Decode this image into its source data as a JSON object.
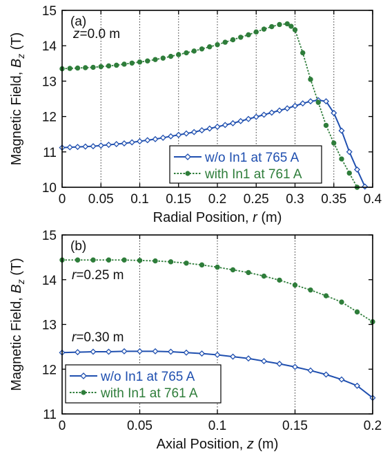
{
  "colors": {
    "blue": "#1f4faf",
    "green": "#2e7d3a",
    "grid": "#333333",
    "axis": "#000000"
  },
  "chart_data": [
    {
      "type": "line",
      "panel_label": "(a)",
      "annotation": {
        "prefix": "z",
        "text": "=0.0 m"
      },
      "xlabel": {
        "text": "Radial Position, ",
        "var": "r",
        "unit": " (m)"
      },
      "ylabel": {
        "text": "Magnetic Field, ",
        "var": "B",
        "sub": "z",
        "unit": " (T)"
      },
      "xlim": [
        0,
        0.4
      ],
      "ylim": [
        10,
        15
      ],
      "xticks": [
        0,
        0.05,
        0.1,
        0.15,
        0.2,
        0.25,
        0.3,
        0.35,
        0.4
      ],
      "xtick_labels": [
        "0",
        "0.05",
        "0.1",
        "0.15",
        "0.2",
        "0.25",
        "0.3",
        "0.35",
        "0.4"
      ],
      "yticks": [
        10,
        11,
        12,
        13,
        14,
        15
      ],
      "ytick_labels": [
        "10",
        "11",
        "12",
        "13",
        "14",
        "15"
      ],
      "grid": "vertical dotted",
      "legend_position": "bottom-right",
      "series": [
        {
          "name": "w/o In1 at 765 A",
          "color": "blue",
          "style": "solid",
          "marker": "open-diamond",
          "x": [
            0,
            0.01,
            0.02,
            0.03,
            0.04,
            0.05,
            0.06,
            0.07,
            0.08,
            0.09,
            0.1,
            0.11,
            0.12,
            0.13,
            0.14,
            0.15,
            0.16,
            0.17,
            0.18,
            0.19,
            0.2,
            0.21,
            0.22,
            0.23,
            0.24,
            0.25,
            0.26,
            0.27,
            0.28,
            0.29,
            0.3,
            0.31,
            0.32,
            0.33,
            0.34,
            0.35,
            0.36,
            0.37,
            0.38,
            0.39
          ],
          "y": [
            11.12,
            11.13,
            11.14,
            11.15,
            11.16,
            11.18,
            11.2,
            11.22,
            11.24,
            11.27,
            11.3,
            11.33,
            11.36,
            11.4,
            11.44,
            11.48,
            11.52,
            11.56,
            11.61,
            11.66,
            11.71,
            11.76,
            11.81,
            11.87,
            11.93,
            11.99,
            12.05,
            12.11,
            12.17,
            12.23,
            12.3,
            12.37,
            12.43,
            12.46,
            12.43,
            12.1,
            11.6,
            11.0,
            10.5,
            10.02
          ]
        },
        {
          "name": "with In1 at 761 A",
          "color": "green",
          "style": "dotted",
          "marker": "filled-circle",
          "x": [
            0,
            0.01,
            0.02,
            0.03,
            0.04,
            0.05,
            0.06,
            0.07,
            0.08,
            0.09,
            0.1,
            0.11,
            0.12,
            0.13,
            0.14,
            0.15,
            0.16,
            0.17,
            0.18,
            0.19,
            0.2,
            0.21,
            0.22,
            0.23,
            0.24,
            0.25,
            0.26,
            0.27,
            0.28,
            0.29,
            0.295,
            0.3,
            0.31,
            0.32,
            0.33,
            0.34,
            0.35,
            0.36,
            0.37,
            0.38
          ],
          "y": [
            13.35,
            13.36,
            13.37,
            13.38,
            13.39,
            13.41,
            13.43,
            13.45,
            13.48,
            13.51,
            13.54,
            13.57,
            13.61,
            13.65,
            13.7,
            13.75,
            13.8,
            13.85,
            13.91,
            13.97,
            14.03,
            14.1,
            14.17,
            14.24,
            14.31,
            14.39,
            14.47,
            14.54,
            14.6,
            14.62,
            14.55,
            14.45,
            13.8,
            13.05,
            12.4,
            11.75,
            11.25,
            10.8,
            10.4,
            10.0
          ]
        }
      ]
    },
    {
      "type": "line",
      "panel_label": "(b)",
      "annotations": [
        {
          "prefix": "r",
          "text": "=0.25 m",
          "near": "green"
        },
        {
          "prefix": "r",
          "text": "=0.30 m",
          "near": "blue"
        }
      ],
      "xlabel": {
        "text": "Axial Position, ",
        "var": "z",
        "unit": " (m)"
      },
      "ylabel": {
        "text": "Magnetic Field, ",
        "var": "B",
        "sub": "z",
        "unit": " (T)"
      },
      "xlim": [
        0,
        0.2
      ],
      "ylim": [
        11,
        15
      ],
      "xticks": [
        0,
        0.05,
        0.1,
        0.15,
        0.2
      ],
      "xtick_labels": [
        "0",
        "0.05",
        "0.1",
        "0.15",
        "0.2"
      ],
      "yticks": [
        11,
        12,
        13,
        14,
        15
      ],
      "ytick_labels": [
        "11",
        "12",
        "13",
        "14",
        "15"
      ],
      "grid": "vertical dotted",
      "legend_position": "bottom-left",
      "series": [
        {
          "name": "w/o In1 at 765 A",
          "color": "blue",
          "style": "solid",
          "marker": "open-diamond",
          "x": [
            0,
            0.01,
            0.02,
            0.03,
            0.04,
            0.05,
            0.06,
            0.07,
            0.08,
            0.09,
            0.1,
            0.11,
            0.12,
            0.13,
            0.14,
            0.15,
            0.16,
            0.17,
            0.18,
            0.19,
            0.2
          ],
          "y": [
            12.37,
            12.38,
            12.39,
            12.39,
            12.4,
            12.4,
            12.4,
            12.39,
            12.37,
            12.35,
            12.32,
            12.28,
            12.24,
            12.18,
            12.12,
            12.05,
            11.97,
            11.88,
            11.77,
            11.63,
            11.36
          ]
        },
        {
          "name": "with In1 at 761 A",
          "color": "green",
          "style": "dotted",
          "marker": "filled-circle",
          "x": [
            0,
            0.01,
            0.02,
            0.03,
            0.04,
            0.05,
            0.06,
            0.07,
            0.08,
            0.09,
            0.1,
            0.11,
            0.12,
            0.13,
            0.14,
            0.15,
            0.16,
            0.17,
            0.18,
            0.19,
            0.2
          ],
          "y": [
            14.44,
            14.44,
            14.44,
            14.44,
            14.44,
            14.43,
            14.42,
            14.4,
            14.37,
            14.33,
            14.28,
            14.22,
            14.16,
            14.08,
            13.99,
            13.88,
            13.77,
            13.64,
            13.5,
            13.28,
            13.06
          ]
        }
      ]
    }
  ]
}
